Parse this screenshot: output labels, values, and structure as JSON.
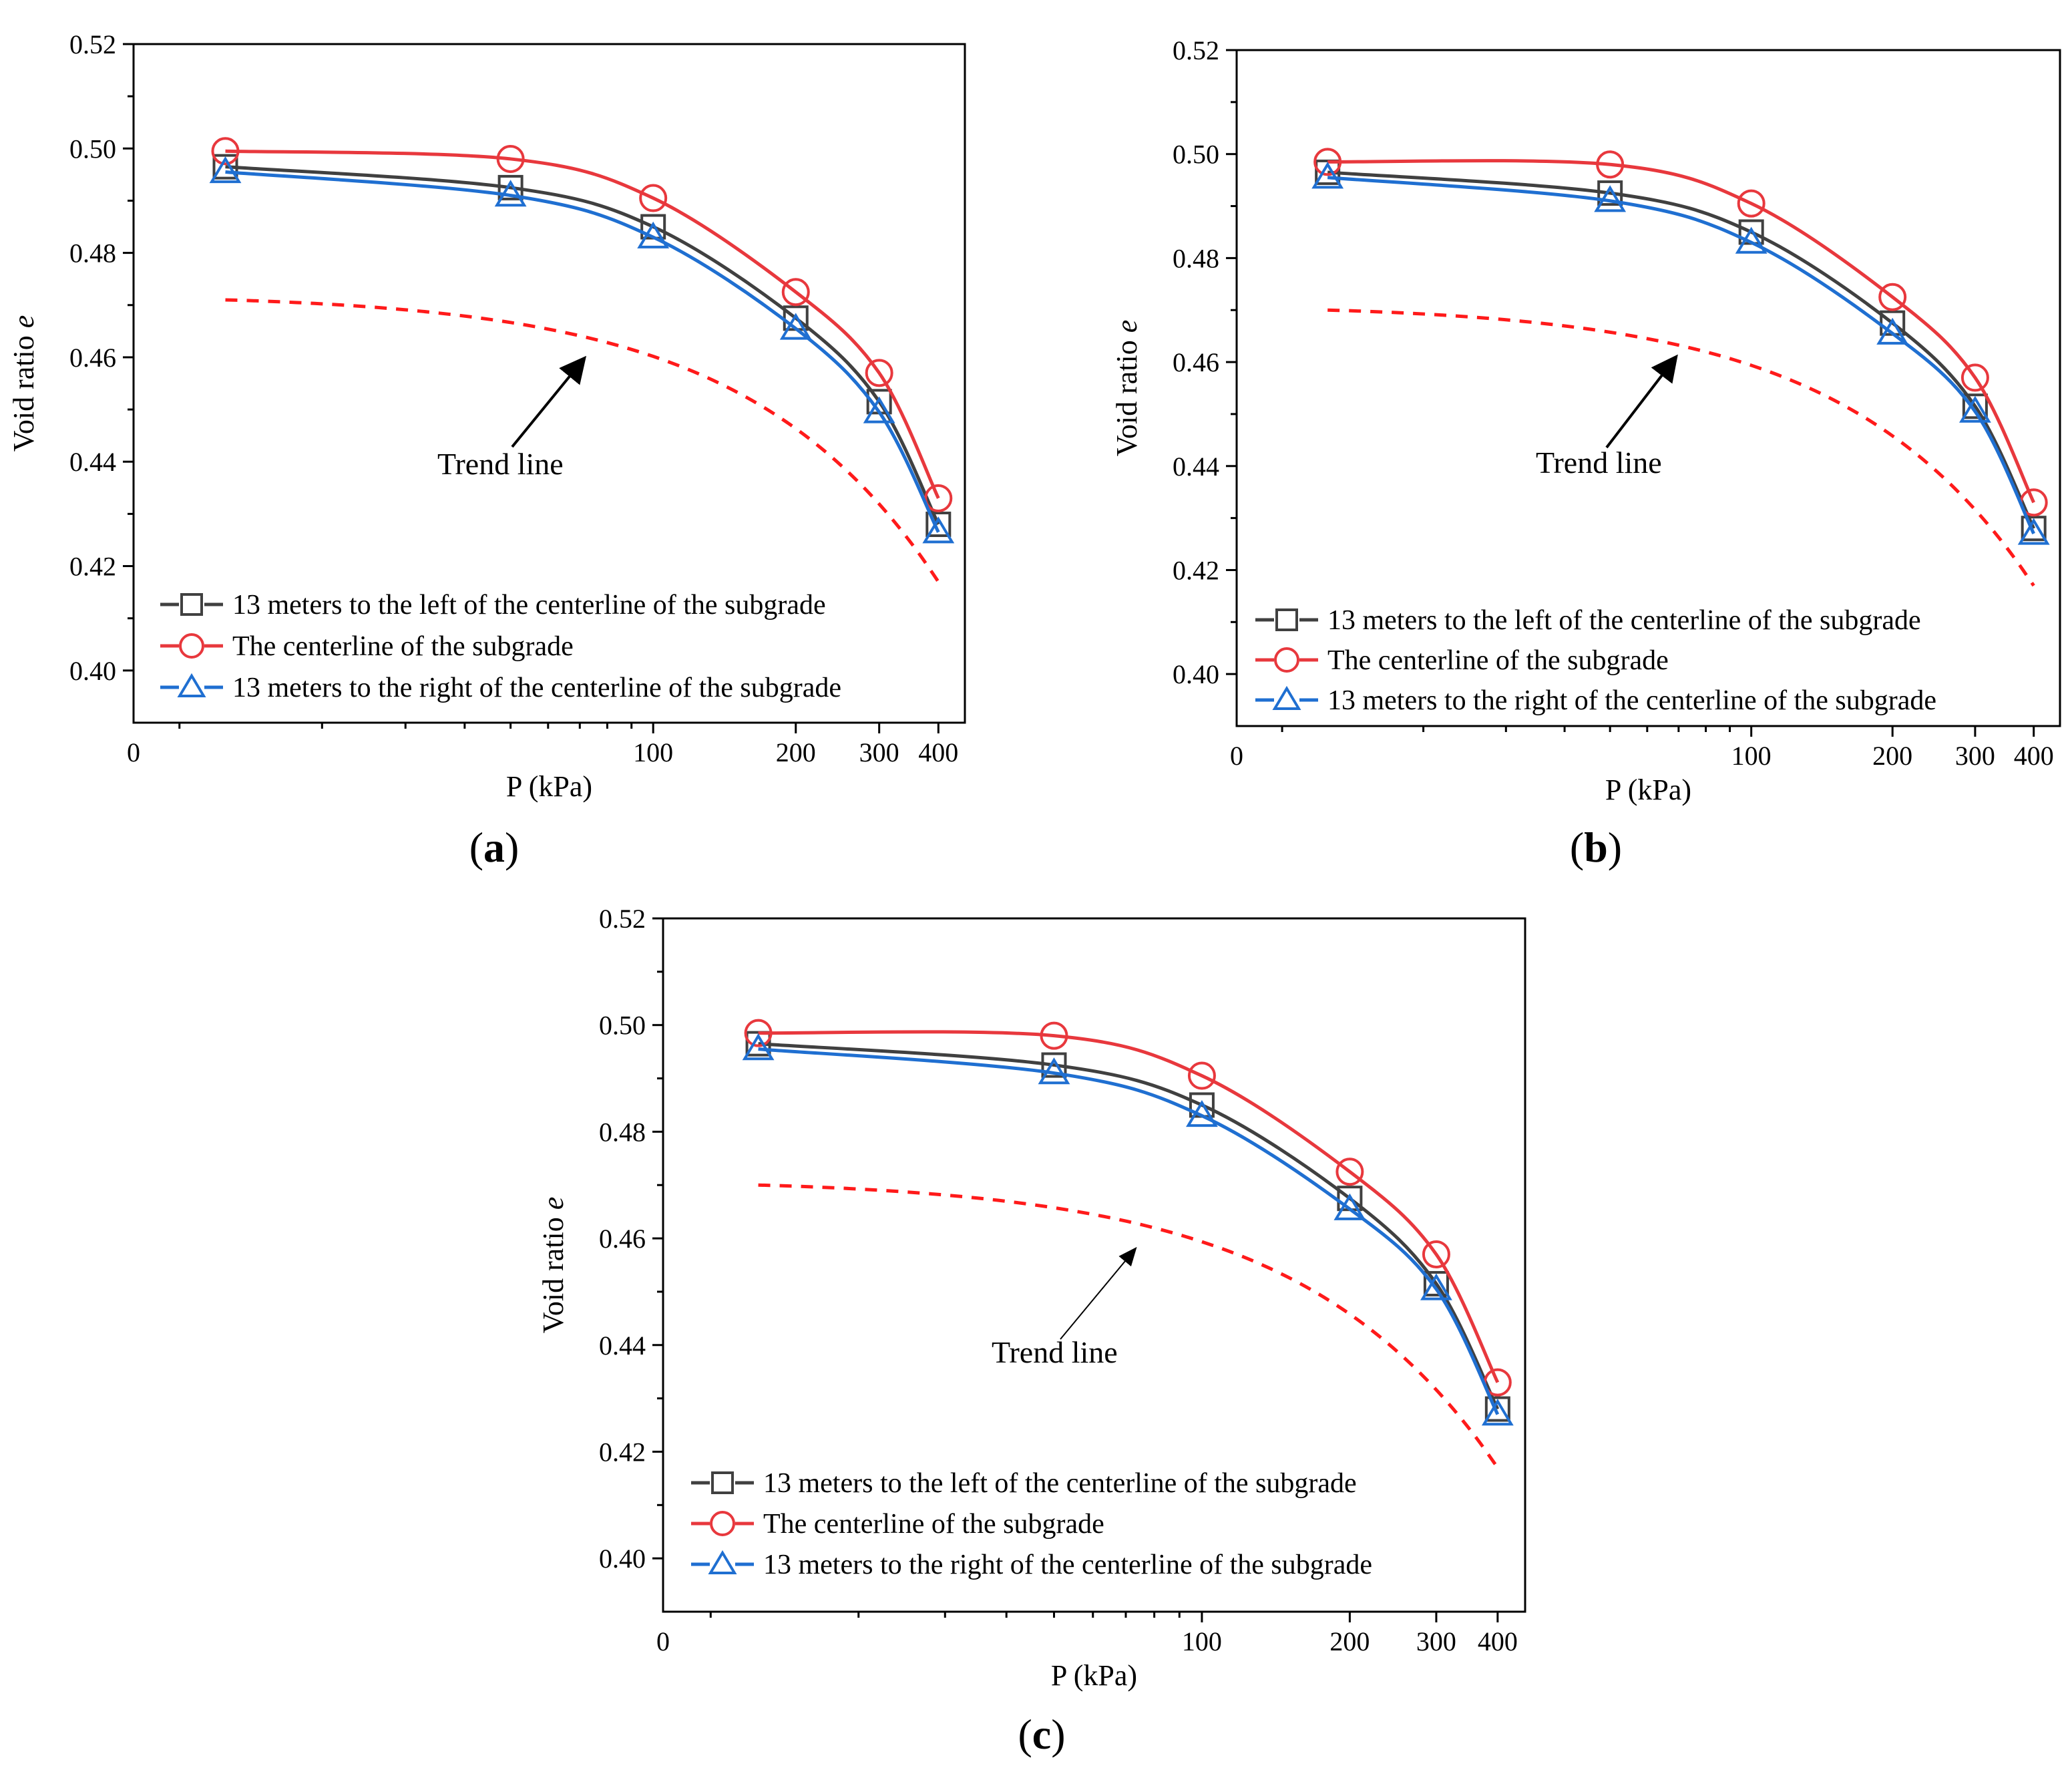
{
  "figure": {
    "panels": [
      "a",
      "b",
      "c"
    ]
  },
  "colors": {
    "left": "#404040",
    "center": "#e8383d",
    "right": "#1f6fd1",
    "trend": "#ff1a1a"
  },
  "chart_data": [
    {
      "panel": "a",
      "label": "a",
      "type": "line",
      "xscale": "log",
      "xlabel": "P (kPa)",
      "ylabel_main": "Void ratio ",
      "ylabel_italic": "e",
      "ylim": [
        0.39,
        0.52
      ],
      "yticks": [
        0.4,
        0.42,
        0.44,
        0.46,
        0.48,
        0.5,
        0.52
      ],
      "ytick_labels": [
        "0.40",
        "0.42",
        "0.44",
        "0.46",
        "0.48",
        "0.50",
        "0.52"
      ],
      "xticks": [
        100,
        200,
        300,
        400
      ],
      "xtick_labels": [
        "100",
        "200",
        "300",
        "400"
      ],
      "x_origin_label": "0",
      "x": [
        12.5,
        50,
        100,
        200,
        300,
        400
      ],
      "series": [
        {
          "key": "left",
          "name": "13 meters to the left of the centerline of the subgrade",
          "marker": "square",
          "values": [
            0.4965,
            0.4925,
            0.485,
            0.4675,
            0.4515,
            0.428
          ]
        },
        {
          "key": "center",
          "name": "The centerline of the subgrade",
          "marker": "circle",
          "values": [
            0.4995,
            0.498,
            0.4905,
            0.4725,
            0.457,
            0.433
          ]
        },
        {
          "key": "right",
          "name": "13 meters to the right of the centerline  of the subgrade",
          "marker": "triangle",
          "values": [
            0.4955,
            0.491,
            0.483,
            0.4655,
            0.4495,
            0.4265
          ]
        }
      ],
      "trend": {
        "name": "Trend line",
        "x": [
          12.5,
          400
        ],
        "y": [
          0.471,
          0.417
        ]
      }
    },
    {
      "panel": "b",
      "label": "b",
      "type": "line",
      "xscale": "log",
      "xlabel": "P (kPa)",
      "ylabel_main": "Void ratio ",
      "ylabel_italic": "e",
      "ylim": [
        0.39,
        0.52
      ],
      "yticks": [
        0.4,
        0.42,
        0.44,
        0.46,
        0.48,
        0.5,
        0.52
      ],
      "ytick_labels": [
        "0.40",
        "0.42",
        "0.44",
        "0.46",
        "0.48",
        "0.50",
        "0.52"
      ],
      "xticks": [
        100,
        200,
        300,
        400
      ],
      "xtick_labels": [
        "100",
        "200",
        "300",
        "400"
      ],
      "x_origin_label": "0",
      "x": [
        12.5,
        50,
        100,
        200,
        300,
        400
      ],
      "series": [
        {
          "key": "left",
          "name": "13 meters to the left of the centerline of the subgrade",
          "marker": "square",
          "values": [
            0.4965,
            0.4925,
            0.485,
            0.4675,
            0.4515,
            0.428
          ]
        },
        {
          "key": "center",
          "name": "The centerline of the subgrade",
          "marker": "circle",
          "values": [
            0.4985,
            0.498,
            0.4905,
            0.4725,
            0.457,
            0.433
          ]
        },
        {
          "key": "right",
          "name": "13 meters to the right of the centerline  of the subgrade",
          "marker": "triangle",
          "values": [
            0.4955,
            0.491,
            0.483,
            0.4655,
            0.4505,
            0.427
          ]
        }
      ],
      "trend": {
        "name": "Trend line",
        "x": [
          12.5,
          400
        ],
        "y": [
          0.47,
          0.417
        ]
      }
    },
    {
      "panel": "c",
      "label": "c",
      "type": "line",
      "xscale": "log",
      "xlabel": "P (kPa)",
      "ylabel_main": "Void ratio ",
      "ylabel_italic": "e",
      "ylim": [
        0.39,
        0.52
      ],
      "yticks": [
        0.4,
        0.42,
        0.44,
        0.46,
        0.48,
        0.5,
        0.52
      ],
      "ytick_labels": [
        "0.40",
        "0.42",
        "0.44",
        "0.46",
        "0.48",
        "0.50",
        "0.52"
      ],
      "xticks": [
        100,
        200,
        300,
        400
      ],
      "xtick_labels": [
        "100",
        "200",
        "300",
        "400"
      ],
      "x_origin_label": "0",
      "x": [
        12.5,
        50,
        100,
        200,
        300,
        400
      ],
      "series": [
        {
          "key": "left",
          "name": "13 meters to the left of the centerline of the subgrade",
          "marker": "square",
          "values": [
            0.4965,
            0.4925,
            0.485,
            0.4675,
            0.4515,
            0.428
          ]
        },
        {
          "key": "center",
          "name": "The centerline of the subgrade",
          "marker": "circle",
          "values": [
            0.4985,
            0.498,
            0.4905,
            0.4725,
            0.457,
            0.433
          ]
        },
        {
          "key": "right",
          "name": "13 meters to the right of the centerline of the subgrade",
          "marker": "triangle",
          "values": [
            0.4955,
            0.491,
            0.483,
            0.4655,
            0.4505,
            0.427
          ]
        }
      ],
      "trend": {
        "name": "Trend line",
        "x": [
          12.5,
          400
        ],
        "y": [
          0.47,
          0.417
        ]
      }
    }
  ]
}
